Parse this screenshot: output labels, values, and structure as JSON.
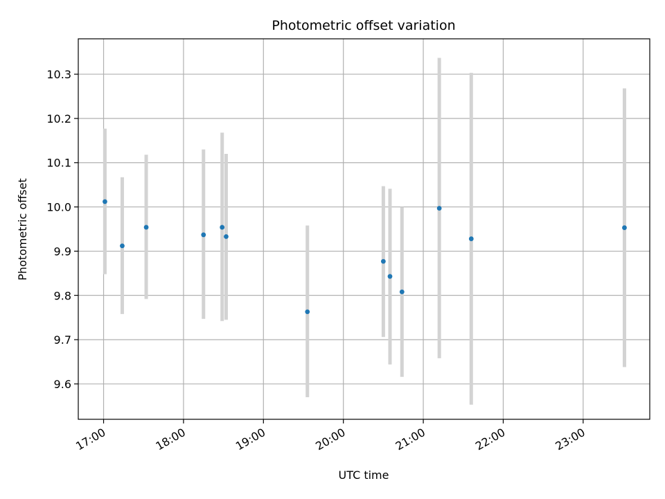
{
  "chart_data": {
    "type": "scatter",
    "title": "Photometric offset variation",
    "xlabel": "UTC time",
    "ylabel": "Photometric offset",
    "xlim": [
      "16:41",
      "23:50"
    ],
    "ylim": [
      9.52,
      10.38
    ],
    "x_ticks": [
      "17:00",
      "18:00",
      "19:00",
      "20:00",
      "21:00",
      "22:00",
      "23:00"
    ],
    "y_ticks": [
      "9.6",
      "9.7",
      "9.8",
      "9.9",
      "10.0",
      "10.1",
      "10.2",
      "10.3"
    ],
    "grid": true,
    "colors": {
      "point": "#1f77b4",
      "error_bar": "#d3d3d3",
      "grid": "#b0b0b0"
    },
    "points": [
      {
        "x": "17:01",
        "y": 10.012,
        "ylow": 9.848,
        "yhigh": 10.177
      },
      {
        "x": "17:14",
        "y": 9.912,
        "ylow": 9.758,
        "yhigh": 10.067
      },
      {
        "x": "17:32",
        "y": 9.954,
        "ylow": 9.792,
        "yhigh": 10.118
      },
      {
        "x": "18:15",
        "y": 9.937,
        "ylow": 9.747,
        "yhigh": 10.13
      },
      {
        "x": "18:29",
        "y": 9.954,
        "ylow": 9.742,
        "yhigh": 10.168
      },
      {
        "x": "18:32",
        "y": 9.933,
        "ylow": 9.745,
        "yhigh": 10.12
      },
      {
        "x": "19:33",
        "y": 9.763,
        "ylow": 9.57,
        "yhigh": 9.958
      },
      {
        "x": "20:30",
        "y": 9.877,
        "ylow": 9.706,
        "yhigh": 10.047
      },
      {
        "x": "20:35",
        "y": 9.843,
        "ylow": 9.644,
        "yhigh": 10.041
      },
      {
        "x": "20:44",
        "y": 9.808,
        "ylow": 9.616,
        "yhigh": 10.0
      },
      {
        "x": "21:12",
        "y": 9.997,
        "ylow": 9.658,
        "yhigh": 10.337
      },
      {
        "x": "21:36",
        "y": 9.928,
        "ylow": 9.553,
        "yhigh": 10.303
      },
      {
        "x": "23:31",
        "y": 9.953,
        "ylow": 9.638,
        "yhigh": 10.268
      }
    ]
  }
}
